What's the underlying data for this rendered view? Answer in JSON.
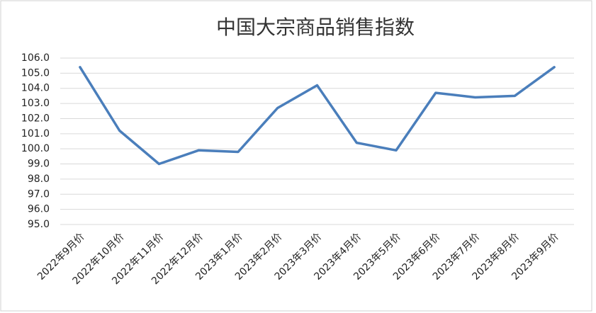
{
  "chart_data": {
    "type": "line",
    "title": "中国大宗商品销售指数",
    "categories": [
      "2022年9月价",
      "2022年10月价",
      "2022年11月价",
      "2022年12月价",
      "2023年1月价",
      "2023年2月价",
      "2023年3月价",
      "2023年4月价",
      "2023年5月价",
      "2023年6月价",
      "2023年7月价",
      "2023年8月价",
      "2023年9月价"
    ],
    "values": [
      105.4,
      101.2,
      99.0,
      99.9,
      99.8,
      102.7,
      104.2,
      100.4,
      99.9,
      103.7,
      103.4,
      103.5,
      105.4
    ],
    "color": "#4a7ebb",
    "ylim": [
      95,
      106
    ],
    "yticks": [
      {
        "value": 95,
        "label": "95.0"
      },
      {
        "value": 96,
        "label": "96.0"
      },
      {
        "value": 97,
        "label": "97.0"
      },
      {
        "value": 98,
        "label": "98.0"
      },
      {
        "value": 99,
        "label": "99.0"
      },
      {
        "value": 100,
        "label": "100.0"
      },
      {
        "value": 101,
        "label": "101.0"
      },
      {
        "value": 102,
        "label": "102.0"
      },
      {
        "value": 103,
        "label": "103.0"
      },
      {
        "value": 104,
        "label": "104.0"
      },
      {
        "value": 105,
        "label": "105.0"
      },
      {
        "value": 106,
        "label": "106.0"
      }
    ],
    "grid": true
  }
}
